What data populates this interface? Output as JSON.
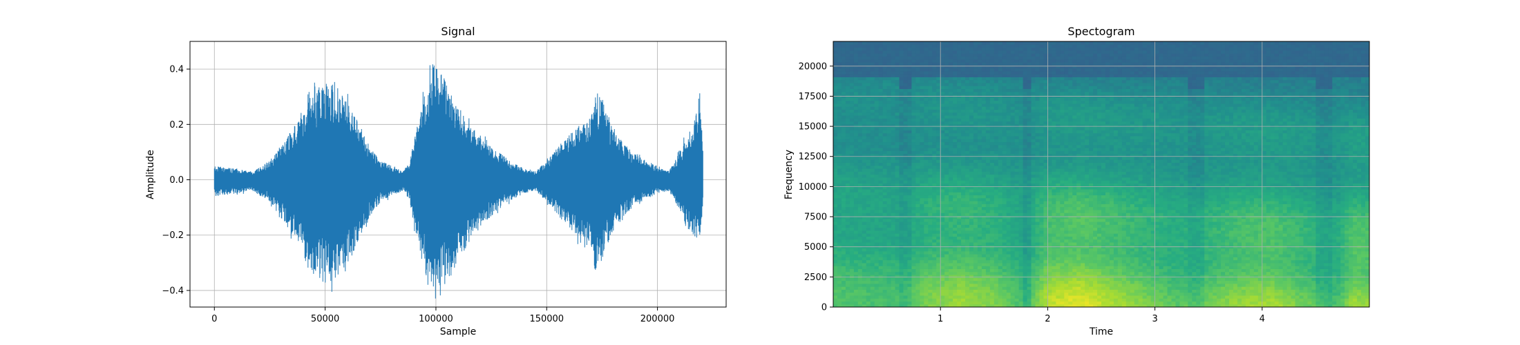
{
  "chart_data": [
    {
      "type": "line",
      "title": "Signal",
      "xlabel": "Sample",
      "ylabel": "Amplitude",
      "xlim": [
        -11000,
        231000
      ],
      "ylim": [
        -0.46,
        0.5
      ],
      "xticks": [
        0,
        50000,
        100000,
        150000,
        200000
      ],
      "xtick_labels": [
        "0",
        "50000",
        "100000",
        "150000",
        "200000"
      ],
      "yticks": [
        -0.4,
        -0.2,
        0.0,
        0.2,
        0.4
      ],
      "ytick_labels": [
        "−0.4",
        "−0.2",
        "0.0",
        "0.2",
        "0.4"
      ],
      "grid": true,
      "color": "#1f77b4",
      "n_samples": 220500,
      "envelope": {
        "x": [
          0,
          10000,
          17000,
          25000,
          32000,
          40000,
          45000,
          50000,
          55000,
          62000,
          70000,
          75000,
          80000,
          85000,
          88000,
          92000,
          96000,
          100000,
          104000,
          108000,
          115000,
          125000,
          135000,
          140000,
          145000,
          150000,
          155000,
          160000,
          165000,
          170000,
          172000,
          175000,
          180000,
          185000,
          190000,
          200000,
          205000,
          208000,
          212000,
          216000,
          219000,
          220500
        ],
        "max": [
          0.05,
          0.04,
          0.03,
          0.07,
          0.14,
          0.26,
          0.33,
          0.35,
          0.34,
          0.26,
          0.12,
          0.07,
          0.05,
          0.03,
          0.06,
          0.22,
          0.35,
          0.46,
          0.38,
          0.3,
          0.2,
          0.12,
          0.06,
          0.04,
          0.03,
          0.07,
          0.12,
          0.16,
          0.2,
          0.23,
          0.32,
          0.3,
          0.18,
          0.13,
          0.09,
          0.05,
          0.03,
          0.07,
          0.14,
          0.2,
          0.33,
          0.1
        ],
        "min": [
          -0.06,
          -0.05,
          -0.04,
          -0.08,
          -0.16,
          -0.28,
          -0.34,
          -0.38,
          -0.36,
          -0.28,
          -0.14,
          -0.08,
          -0.06,
          -0.04,
          -0.07,
          -0.25,
          -0.36,
          -0.41,
          -0.38,
          -0.34,
          -0.22,
          -0.13,
          -0.07,
          -0.05,
          -0.04,
          -0.08,
          -0.13,
          -0.17,
          -0.22,
          -0.25,
          -0.34,
          -0.29,
          -0.19,
          -0.13,
          -0.09,
          -0.05,
          -0.04,
          -0.08,
          -0.16,
          -0.2,
          -0.22,
          -0.08
        ]
      }
    },
    {
      "type": "heatmap",
      "title": "Spectogram",
      "xlabel": "Time",
      "ylabel": "Frequency",
      "xlim": [
        0,
        5.0
      ],
      "ylim": [
        0,
        22050
      ],
      "xticks": [
        1,
        2,
        3,
        4
      ],
      "xtick_labels": [
        "1",
        "2",
        "3",
        "4"
      ],
      "yticks": [
        0,
        2500,
        5000,
        7500,
        10000,
        12500,
        15000,
        17500,
        20000
      ],
      "ytick_labels": [
        "0",
        "2500",
        "5000",
        "7500",
        "10000",
        "12500",
        "15000",
        "17500",
        "20000"
      ],
      "grid": true,
      "colormap": "viridis",
      "cutoff_frequency": 19000,
      "loud_segments": [
        [
          0.0,
          0.6
        ],
        [
          0.75,
          1.75
        ],
        [
          1.85,
          3.3
        ],
        [
          3.45,
          4.5
        ],
        [
          4.65,
          5.0
        ]
      ],
      "energy_profile": [
        [
          0,
          0.45
        ],
        [
          0.6,
          0.4
        ],
        [
          0.9,
          0.6
        ],
        [
          1.2,
          0.7
        ],
        [
          1.5,
          0.6
        ],
        [
          1.8,
          0.35
        ],
        [
          2.0,
          0.8
        ],
        [
          2.3,
          0.9
        ],
        [
          2.6,
          0.75
        ],
        [
          2.9,
          0.6
        ],
        [
          3.2,
          0.45
        ],
        [
          3.5,
          0.55
        ],
        [
          3.8,
          0.7
        ],
        [
          4.1,
          0.75
        ],
        [
          4.4,
          0.55
        ],
        [
          4.7,
          0.4
        ],
        [
          4.85,
          0.75
        ],
        [
          5.0,
          0.7
        ]
      ]
    }
  ]
}
